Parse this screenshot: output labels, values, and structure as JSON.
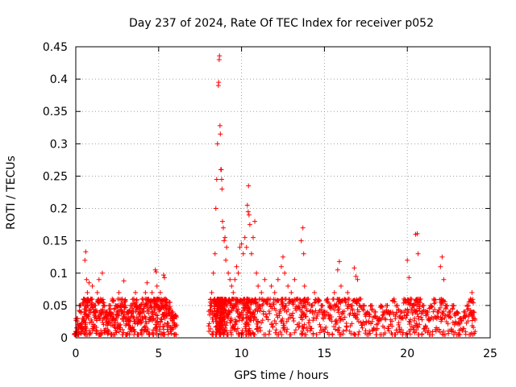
{
  "chart_data": {
    "type": "scatter",
    "title": "Day 237 of 2024, Rate Of TEC Index for receiver p052",
    "xlabel": "GPS time / hours",
    "ylabel": "ROTI / TECUs",
    "xlim": [
      0,
      25
    ],
    "ylim": [
      0,
      0.45
    ],
    "xticks": [
      0,
      5,
      10,
      15,
      20,
      25
    ],
    "xtick_labels": [
      "0",
      "5",
      "10",
      "15",
      "20",
      "25"
    ],
    "yticks": [
      0,
      0.05,
      0.1,
      0.15,
      0.2,
      0.25,
      0.3,
      0.35,
      0.4,
      0.45
    ],
    "ytick_labels": [
      "0",
      "0.05",
      "0.1",
      "0.15",
      "0.2",
      "0.25",
      "0.3",
      "0.35",
      "0.4",
      "0.45"
    ],
    "grid": true,
    "marker": "+",
    "color": "#ff0000",
    "series": [
      {
        "name": "ROTI",
        "points": [
          [
            0.0,
            0.01
          ],
          [
            0.1,
            0.03
          ],
          [
            0.2,
            0.02
          ],
          [
            0.3,
            0.05
          ],
          [
            0.4,
            0.03
          ],
          [
            0.5,
            0.06
          ],
          [
            0.55,
            0.12
          ],
          [
            0.6,
            0.133
          ],
          [
            0.65,
            0.09
          ],
          [
            0.7,
            0.07
          ],
          [
            0.8,
            0.085
          ],
          [
            0.9,
            0.06
          ],
          [
            1.0,
            0.08
          ],
          [
            1.1,
            0.05
          ],
          [
            1.2,
            0.04
          ],
          [
            1.3,
            0.07
          ],
          [
            1.4,
            0.09
          ],
          [
            1.5,
            0.06
          ],
          [
            1.6,
            0.1
          ],
          [
            1.7,
            0.05
          ],
          [
            1.8,
            0.04
          ],
          [
            1.9,
            0.03
          ],
          [
            2.0,
            0.05
          ],
          [
            2.1,
            0.04
          ],
          [
            2.2,
            0.06
          ],
          [
            2.3,
            0.03
          ],
          [
            2.4,
            0.05
          ],
          [
            2.5,
            0.04
          ],
          [
            2.6,
            0.07
          ],
          [
            2.7,
            0.05
          ],
          [
            2.8,
            0.06
          ],
          [
            2.9,
            0.088
          ],
          [
            3.0,
            0.05
          ],
          [
            3.1,
            0.04
          ],
          [
            3.2,
            0.03
          ],
          [
            3.3,
            0.05
          ],
          [
            3.4,
            0.04
          ],
          [
            3.5,
            0.06
          ],
          [
            3.6,
            0.07
          ],
          [
            3.7,
            0.05
          ],
          [
            3.8,
            0.04
          ],
          [
            3.9,
            0.05
          ],
          [
            4.0,
            0.06
          ],
          [
            4.1,
            0.04
          ],
          [
            4.2,
            0.07
          ],
          [
            4.3,
            0.085
          ],
          [
            4.4,
            0.06
          ],
          [
            4.5,
            0.05
          ],
          [
            4.6,
            0.07
          ],
          [
            4.7,
            0.06
          ],
          [
            4.8,
            0.105
          ],
          [
            4.85,
            0.102
          ],
          [
            4.9,
            0.08
          ],
          [
            5.0,
            0.06
          ],
          [
            5.1,
            0.07
          ],
          [
            5.2,
            0.05
          ],
          [
            5.3,
            0.097
          ],
          [
            5.35,
            0.093
          ],
          [
            5.4,
            0.06
          ],
          [
            5.5,
            0.05
          ],
          [
            5.6,
            0.055
          ],
          [
            5.7,
            0.045
          ],
          [
            5.8,
            0.04
          ],
          [
            5.9,
            0.03
          ],
          [
            6.0,
            0.035
          ],
          [
            8.1,
            0.05
          ],
          [
            8.2,
            0.07
          ],
          [
            8.3,
            0.1
          ],
          [
            8.4,
            0.13
          ],
          [
            8.45,
            0.2
          ],
          [
            8.5,
            0.245
          ],
          [
            8.55,
            0.3
          ],
          [
            8.6,
            0.39
          ],
          [
            8.62,
            0.395
          ],
          [
            8.65,
            0.43
          ],
          [
            8.67,
            0.436
          ],
          [
            8.7,
            0.328
          ],
          [
            8.72,
            0.315
          ],
          [
            8.75,
            0.26
          ],
          [
            8.78,
            0.26
          ],
          [
            8.8,
            0.245
          ],
          [
            8.82,
            0.23
          ],
          [
            8.85,
            0.18
          ],
          [
            8.9,
            0.17
          ],
          [
            8.95,
            0.15
          ],
          [
            9.0,
            0.155
          ],
          [
            9.05,
            0.12
          ],
          [
            9.1,
            0.14
          ],
          [
            9.2,
            0.1
          ],
          [
            9.3,
            0.09
          ],
          [
            9.4,
            0.08
          ],
          [
            9.5,
            0.07
          ],
          [
            9.6,
            0.09
          ],
          [
            9.7,
            0.11
          ],
          [
            9.8,
            0.1
          ],
          [
            9.9,
            0.14
          ],
          [
            10.0,
            0.145
          ],
          [
            10.1,
            0.13
          ],
          [
            10.2,
            0.155
          ],
          [
            10.3,
            0.14
          ],
          [
            10.35,
            0.205
          ],
          [
            10.4,
            0.195
          ],
          [
            10.42,
            0.235
          ],
          [
            10.45,
            0.19
          ],
          [
            10.5,
            0.175
          ],
          [
            10.6,
            0.13
          ],
          [
            10.7,
            0.155
          ],
          [
            10.8,
            0.18
          ],
          [
            10.9,
            0.1
          ],
          [
            11.0,
            0.08
          ],
          [
            11.2,
            0.07
          ],
          [
            11.4,
            0.09
          ],
          [
            11.6,
            0.06
          ],
          [
            11.8,
            0.08
          ],
          [
            12.0,
            0.07
          ],
          [
            12.2,
            0.09
          ],
          [
            12.4,
            0.11
          ],
          [
            12.5,
            0.125
          ],
          [
            12.6,
            0.1
          ],
          [
            12.8,
            0.08
          ],
          [
            13.0,
            0.07
          ],
          [
            13.2,
            0.09
          ],
          [
            13.4,
            0.06
          ],
          [
            13.6,
            0.15
          ],
          [
            13.7,
            0.17
          ],
          [
            13.75,
            0.13
          ],
          [
            13.8,
            0.08
          ],
          [
            14.0,
            0.06
          ],
          [
            14.2,
            0.05
          ],
          [
            14.4,
            0.07
          ],
          [
            14.6,
            0.06
          ],
          [
            14.8,
            0.05
          ],
          [
            15.0,
            0.04
          ],
          [
            15.2,
            0.06
          ],
          [
            15.4,
            0.05
          ],
          [
            15.6,
            0.07
          ],
          [
            15.8,
            0.105
          ],
          [
            15.9,
            0.118
          ],
          [
            16.0,
            0.08
          ],
          [
            16.2,
            0.06
          ],
          [
            16.4,
            0.07
          ],
          [
            16.6,
            0.05
          ],
          [
            16.8,
            0.108
          ],
          [
            16.9,
            0.095
          ],
          [
            17.0,
            0.09
          ],
          [
            17.2,
            0.06
          ],
          [
            17.4,
            0.05
          ],
          [
            17.6,
            0.04
          ],
          [
            17.8,
            0.05
          ],
          [
            18.0,
            0.04
          ],
          [
            18.2,
            0.03
          ],
          [
            18.4,
            0.05
          ],
          [
            18.6,
            0.04
          ],
          [
            18.8,
            0.05
          ],
          [
            19.0,
            0.04
          ],
          [
            19.2,
            0.06
          ],
          [
            19.4,
            0.05
          ],
          [
            19.6,
            0.04
          ],
          [
            19.8,
            0.06
          ],
          [
            20.0,
            0.12
          ],
          [
            20.1,
            0.093
          ],
          [
            20.2,
            0.06
          ],
          [
            20.4,
            0.05
          ],
          [
            20.5,
            0.16
          ],
          [
            20.6,
            0.161
          ],
          [
            20.65,
            0.13
          ],
          [
            20.8,
            0.06
          ],
          [
            21.0,
            0.05
          ],
          [
            21.2,
            0.04
          ],
          [
            21.4,
            0.05
          ],
          [
            21.6,
            0.06
          ],
          [
            21.8,
            0.04
          ],
          [
            22.0,
            0.11
          ],
          [
            22.1,
            0.125
          ],
          [
            22.2,
            0.09
          ],
          [
            22.4,
            0.05
          ],
          [
            22.6,
            0.04
          ],
          [
            22.8,
            0.05
          ],
          [
            23.0,
            0.04
          ],
          [
            23.2,
            0.03
          ],
          [
            23.4,
            0.04
          ],
          [
            23.6,
            0.05
          ],
          [
            23.8,
            0.06
          ],
          [
            23.9,
            0.07
          ],
          [
            24.0,
            0.04
          ]
        ]
      }
    ]
  }
}
